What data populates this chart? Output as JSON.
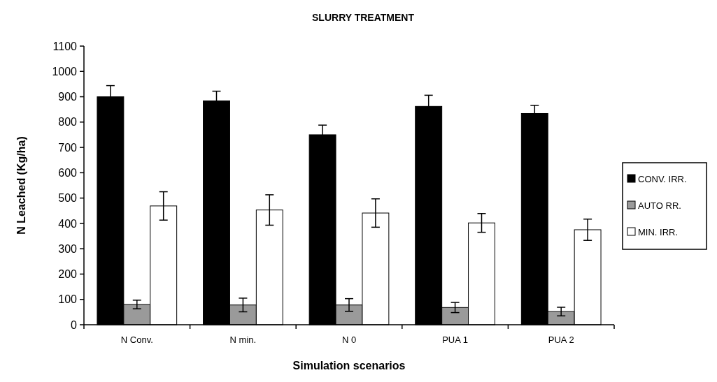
{
  "chart_data": {
    "type": "bar",
    "title": "SLURRY TREATMENT",
    "xlabel": "Simulation scenarios",
    "ylabel": "N Leached (Kg/ha)",
    "categories": [
      "N Conv.",
      "N min.",
      "N  0",
      "PUA 1",
      "PUA 2"
    ],
    "series": [
      {
        "name": "CONV. IRR.",
        "color": "#000000",
        "values": [
          900,
          884,
          750,
          862,
          834
        ],
        "errors": [
          44,
          38,
          38,
          44,
          32
        ]
      },
      {
        "name": "AUTO RR.",
        "color": "#9a9a9a",
        "values": [
          80,
          78,
          78,
          68,
          52
        ],
        "errors": [
          17,
          27,
          25,
          20,
          17
        ]
      },
      {
        "name": "MIN. IRR.",
        "color": "#ffffff",
        "values": [
          469,
          453,
          441,
          402,
          375
        ],
        "errors": [
          56,
          60,
          56,
          37,
          42
        ]
      }
    ],
    "ylim": [
      0,
      1100
    ],
    "yticks": [
      0,
      100,
      200,
      300,
      400,
      500,
      600,
      700,
      800,
      900,
      1000,
      1100
    ],
    "grid": false,
    "legend": "right"
  }
}
